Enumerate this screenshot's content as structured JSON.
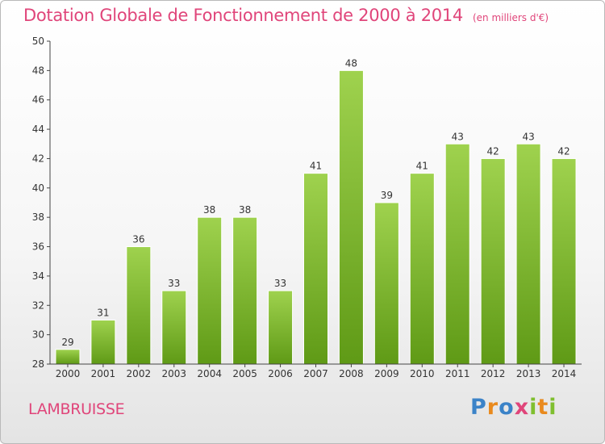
{
  "chart_data": {
    "type": "bar",
    "title": "Dotation Globale de Fonctionnement de 2000 à 2014",
    "unit": "(en milliers d'€)",
    "categories": [
      "2000",
      "2001",
      "2002",
      "2003",
      "2004",
      "2005",
      "2006",
      "2007",
      "2008",
      "2009",
      "2010",
      "2011",
      "2012",
      "2013",
      "2014"
    ],
    "values": [
      29,
      31,
      36,
      33,
      38,
      38,
      33,
      41,
      48,
      39,
      41,
      43,
      42,
      43,
      42
    ],
    "ylim": [
      28,
      50
    ],
    "yticks": [
      28,
      30,
      32,
      34,
      36,
      38,
      40,
      42,
      44,
      46,
      48,
      50
    ],
    "grid": false,
    "bar_color": "#7fbf2f"
  },
  "footer": {
    "city": "LAMBRUISSE",
    "logo_letters": [
      "P",
      "r",
      "o",
      "x",
      "i",
      "t",
      "i"
    ],
    "logo_colors": [
      "#3b83c8",
      "#e98a1e",
      "#3b83c8",
      "#e0457a",
      "#7fbf2f",
      "#e98a1e",
      "#7fbf2f"
    ]
  }
}
